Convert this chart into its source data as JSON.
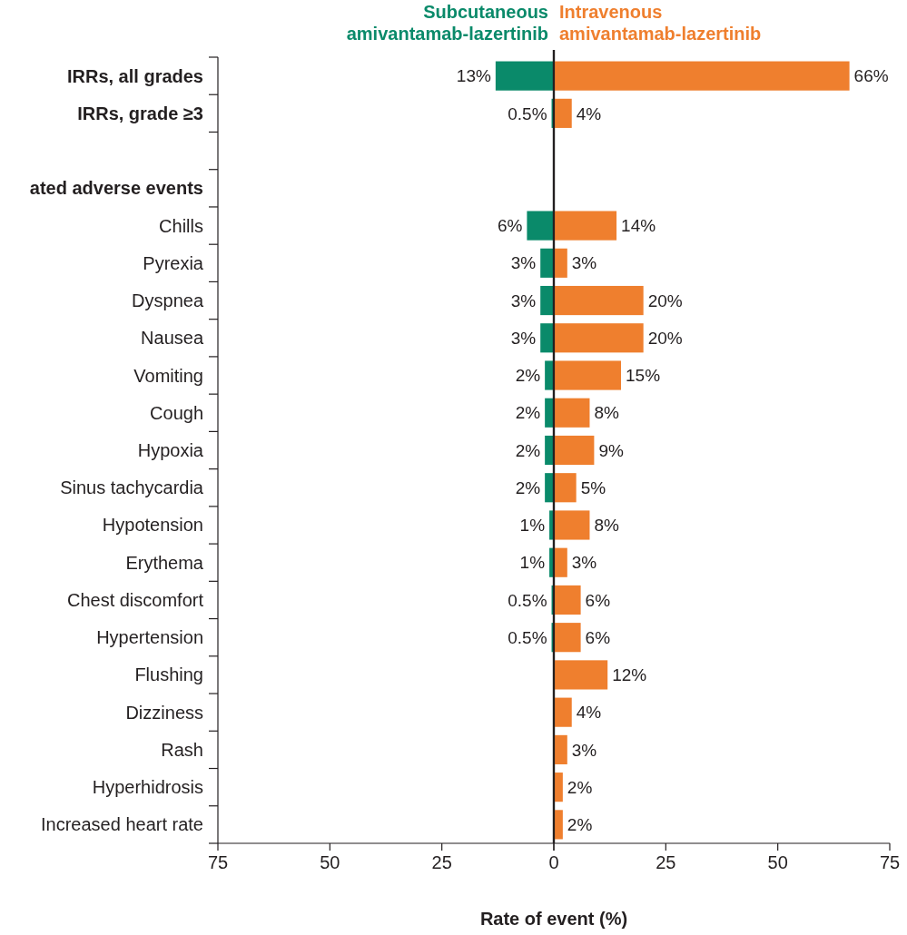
{
  "chart_data": [
    {
      "type": "bar",
      "orientation": "horizontal",
      "legend": "top",
      "categories": [
        "IRRs, all grades",
        "IRRs, grade ≥3",
        null,
        "ated adverse events",
        "Chills",
        "Pyrexia",
        "Dyspnea",
        "Nausea",
        "Vomiting",
        "Cough",
        "Hypoxia",
        "Sinus tachycardia",
        "Hypotension",
        "Erythema",
        "Chest discomfort",
        "Hypertension",
        "Flushing",
        "Dizziness",
        "Rash",
        "Hyperhidrosis",
        "Increased heart rate"
      ],
      "series": [
        {
          "name": "Subcutaneous amivantamab-lazertinib",
          "color": "#0a8a6a",
          "values": [
            13,
            0.5,
            null,
            null,
            6,
            3,
            3,
            3,
            2,
            2,
            2,
            2,
            1,
            1,
            0.5,
            0.5,
            null,
            null,
            null,
            null,
            null
          ],
          "value_labels": [
            "13%",
            "0.5%",
            null,
            null,
            "6%",
            "3%",
            "3%",
            "3%",
            "2%",
            "2%",
            "2%",
            "2%",
            "1%",
            "1%",
            "0.5%",
            "0.5%",
            null,
            null,
            null,
            null,
            null
          ]
        }
      ],
      "xlim": [
        75,
        0
      ],
      "xticks": [
        75,
        50,
        25,
        {
          "value": 0,
          "label": null
        }
      ]
    },
    {
      "type": "bar",
      "orientation": "horizontal",
      "legend": "top",
      "tick_labels": "x",
      "xlabel": "Rate of event (%)",
      "series": [
        {
          "name": "Intravenous amivantamab-lazertinib",
          "color": "#ef7f2e",
          "values": [
            66,
            4,
            null,
            null,
            14,
            3,
            20,
            20,
            15,
            8,
            9,
            5,
            8,
            3,
            6,
            6,
            12,
            4,
            3,
            2,
            2
          ],
          "value_labels": [
            "66%",
            "4%",
            null,
            null,
            "14%",
            "3%",
            "20%",
            "20%",
            "15%",
            "8%",
            "9%",
            "5%",
            "8%",
            "3%",
            "6%",
            "6%",
            "12%",
            "4%",
            "3%",
            "2%",
            "2%"
          ]
        }
      ],
      "xlim": [
        0,
        75
      ],
      "xticks": [
        0,
        25,
        50,
        75
      ]
    }
  ]
}
